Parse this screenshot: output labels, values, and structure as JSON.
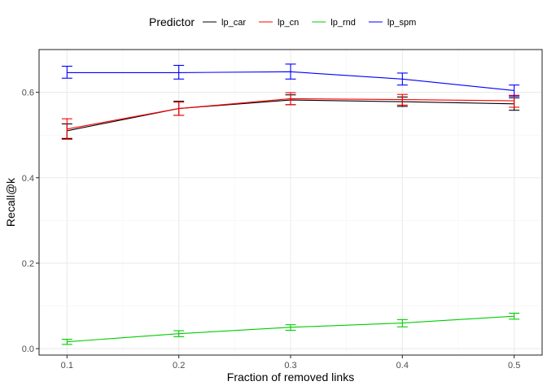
{
  "chart_data": {
    "type": "line",
    "title": "",
    "xlabel": "Fraction of removed links",
    "ylabel": "Recall@k",
    "x": [
      0.1,
      0.2,
      0.3,
      0.4,
      0.5
    ],
    "x_tick_labels": [
      "0.1",
      "0.2",
      "0.3",
      "0.4",
      "0.5"
    ],
    "xlim": [
      0.075,
      0.525
    ],
    "ylim": [
      -0.015,
      0.7
    ],
    "y_ticks": [
      0.0,
      0.2,
      0.4,
      0.6
    ],
    "y_tick_labels": [
      "0.0",
      "0.2",
      "0.4",
      "0.6"
    ],
    "grid": true,
    "legend": {
      "title": "Predictor",
      "position": "top"
    },
    "series": [
      {
        "name": "lp_car",
        "color": "#000000",
        "values": [
          0.51,
          0.562,
          0.582,
          0.578,
          0.573
        ],
        "err_low": [
          0.492,
          0.546,
          0.571,
          0.567,
          0.558
        ],
        "err_high": [
          0.526,
          0.579,
          0.594,
          0.589,
          0.587
        ]
      },
      {
        "name": "lp_cn",
        "color": "#ff0000",
        "values": [
          0.514,
          0.562,
          0.585,
          0.583,
          0.58
        ],
        "err_low": [
          0.49,
          0.546,
          0.571,
          0.57,
          0.565
        ],
        "err_high": [
          0.538,
          0.577,
          0.599,
          0.595,
          0.593
        ]
      },
      {
        "name": "lp_rnd",
        "color": "#00cd00",
        "values": [
          0.016,
          0.035,
          0.05,
          0.06,
          0.076
        ],
        "err_low": [
          0.01,
          0.028,
          0.043,
          0.051,
          0.069
        ],
        "err_high": [
          0.022,
          0.042,
          0.056,
          0.068,
          0.083
        ]
      },
      {
        "name": "lp_spm",
        "color": "#0000ff",
        "values": [
          0.646,
          0.646,
          0.648,
          0.631,
          0.604
        ],
        "err_low": [
          0.633,
          0.631,
          0.631,
          0.617,
          0.591
        ],
        "err_high": [
          0.661,
          0.663,
          0.666,
          0.645,
          0.617
        ]
      }
    ]
  }
}
